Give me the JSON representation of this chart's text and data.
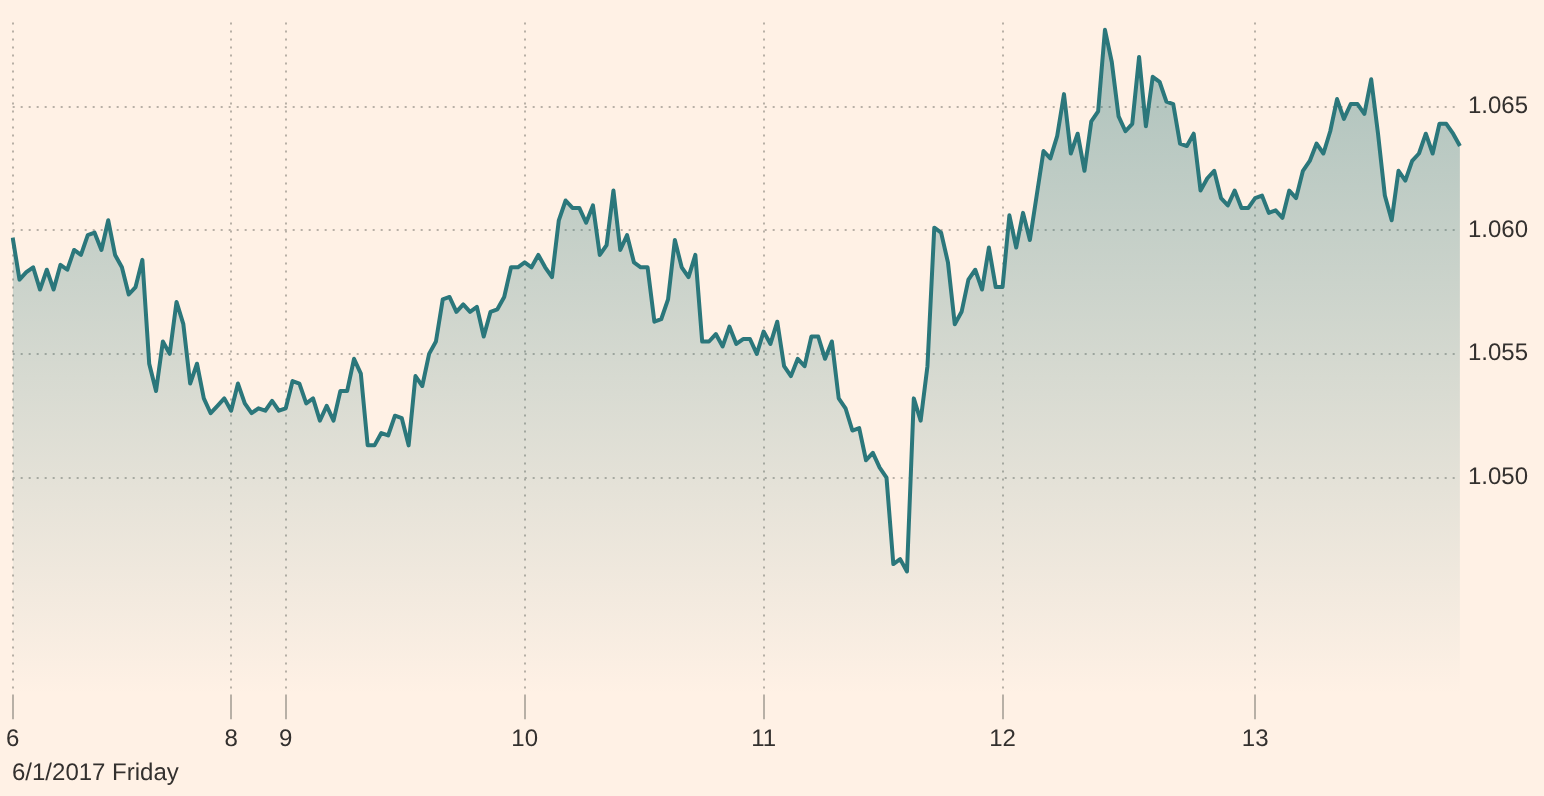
{
  "chart_data": {
    "type": "area",
    "color": "#2b777b",
    "categories": [
      "6",
      null,
      null,
      null,
      null,
      null,
      null,
      null,
      null,
      null,
      null,
      null,
      null,
      null,
      null,
      null,
      null,
      null,
      null,
      null,
      null,
      null,
      null,
      null,
      null,
      null,
      null,
      null,
      null,
      null,
      null,
      null,
      "8",
      null,
      null,
      null,
      null,
      null,
      null,
      null,
      "9",
      null,
      null,
      null,
      null,
      null,
      null,
      null,
      null,
      null,
      null,
      null,
      null,
      null,
      null,
      null,
      null,
      null,
      null,
      null,
      null,
      null,
      null,
      null,
      null,
      null,
      null,
      null,
      null,
      null,
      null,
      null,
      null,
      null,
      null,
      "10",
      null,
      null,
      null,
      null,
      null,
      null,
      null,
      null,
      null,
      null,
      null,
      null,
      null,
      null,
      null,
      null,
      null,
      null,
      null,
      null,
      null,
      null,
      null,
      null,
      null,
      null,
      null,
      null,
      null,
      null,
      null,
      null,
      null,
      null,
      "11",
      null,
      null,
      null,
      null,
      null,
      null,
      null,
      null,
      null,
      null,
      null,
      null,
      null,
      null,
      null,
      null,
      null,
      null,
      null,
      null,
      null,
      null,
      null,
      null,
      null,
      null,
      null,
      null,
      null,
      null,
      null,
      null,
      null,
      null,
      "12",
      null,
      null,
      null,
      null,
      null,
      null,
      null,
      null,
      null,
      null,
      null,
      null,
      null,
      null,
      null,
      null,
      null,
      null,
      null,
      null,
      null,
      null,
      null,
      null,
      null,
      null,
      null,
      null,
      null,
      null,
      null,
      null,
      null,
      null,
      null,
      null,
      "13",
      null,
      null,
      null,
      null,
      null,
      null,
      null,
      null,
      null,
      null,
      null,
      null,
      null,
      null,
      null,
      null,
      null,
      null,
      null,
      null,
      null,
      null,
      null,
      null,
      null,
      null,
      null,
      null,
      null,
      null
    ],
    "values": [
      1.0597,
      1.058,
      1.0583,
      1.0585,
      1.0576,
      1.0584,
      1.0576,
      1.0586,
      1.0584,
      1.0592,
      1.059,
      1.0598,
      1.0599,
      1.0592,
      1.0604,
      1.059,
      1.0585,
      1.0574,
      1.0577,
      1.0588,
      1.0546,
      1.0535,
      1.0555,
      1.055,
      1.0571,
      1.0562,
      1.0538,
      1.0546,
      1.0532,
      1.0526,
      1.0529,
      1.0532,
      1.0527,
      1.0538,
      1.053,
      1.0526,
      1.0528,
      1.0527,
      1.0531,
      1.0527,
      1.0528,
      1.0539,
      1.0538,
      1.053,
      1.0532,
      1.0523,
      1.0529,
      1.0523,
      1.0535,
      1.0535,
      1.0548,
      1.0542,
      1.0513,
      1.0513,
      1.0518,
      1.0517,
      1.0525,
      1.0524,
      1.0513,
      1.0541,
      1.0537,
      1.055,
      1.0555,
      1.0572,
      1.0573,
      1.0567,
      1.057,
      1.0567,
      1.0569,
      1.0557,
      1.0567,
      1.0568,
      1.0573,
      1.0585,
      1.0585,
      1.0587,
      1.0585,
      1.059,
      1.0585,
      1.0581,
      1.0604,
      1.0612,
      1.0609,
      1.0609,
      1.0603,
      1.061,
      1.059,
      1.0594,
      1.0616,
      1.0592,
      1.0598,
      1.0587,
      1.0585,
      1.0585,
      1.0563,
      1.0564,
      1.0572,
      1.0596,
      1.0585,
      1.0581,
      1.059,
      1.0555,
      1.0555,
      1.0558,
      1.0553,
      1.0561,
      1.0554,
      1.0556,
      1.0556,
      1.055,
      1.0559,
      1.0554,
      1.0563,
      1.0545,
      1.0541,
      1.0548,
      1.0545,
      1.0557,
      1.0557,
      1.0548,
      1.0555,
      1.0532,
      1.0528,
      1.0519,
      1.052,
      1.0507,
      1.051,
      1.0504,
      1.05,
      1.0465,
      1.0467,
      1.0462,
      1.0532,
      1.0523,
      1.0545,
      1.0601,
      1.0599,
      1.0587,
      1.0562,
      1.0567,
      1.058,
      1.0584,
      1.0576,
      1.0593,
      1.0577,
      1.0577,
      1.0606,
      1.0593,
      1.0607,
      1.0596,
      1.0614,
      1.0632,
      1.0629,
      1.0638,
      1.0655,
      1.0631,
      1.0639,
      1.0624,
      1.0644,
      1.0648,
      1.0681,
      1.0668,
      1.0646,
      1.064,
      1.0643,
      1.067,
      1.0642,
      1.0662,
      1.066,
      1.0652,
      1.0651,
      1.0635,
      1.0634,
      1.0639,
      1.0616,
      1.0621,
      1.0624,
      1.0613,
      1.061,
      1.0616,
      1.0609,
      1.0609,
      1.0613,
      1.0614,
      1.0607,
      1.0608,
      1.0605,
      1.0616,
      1.0613,
      1.0624,
      1.0628,
      1.0635,
      1.0631,
      1.064,
      1.0653,
      1.0645,
      1.0651,
      1.0651,
      1.0647,
      1.0661,
      1.0639,
      1.0614,
      1.0604,
      1.0624,
      1.062,
      1.0628,
      1.0631,
      1.0639,
      1.0631,
      1.0643,
      1.0643,
      1.0639,
      1.0634
    ],
    "ylim": [
      1.0412,
      1.0684
    ],
    "yticks": [
      {
        "value": 1.05,
        "label": "1.050"
      },
      1.055,
      {
        "value": 1.06,
        "label": "1.060"
      },
      1.065
    ],
    "grid": true,
    "annotations": [
      "6/1/2017 Friday"
    ]
  }
}
